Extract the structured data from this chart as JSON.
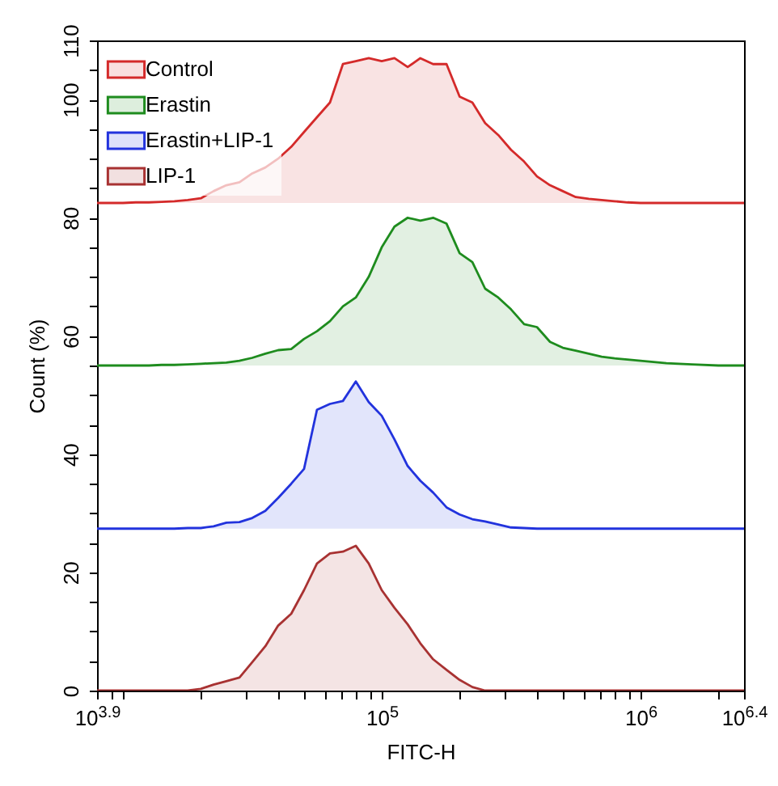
{
  "chart_data": {
    "type": "area",
    "xlabel": "FITC-H",
    "ylabel": "Count (%)",
    "log": "x",
    "legend": "top left",
    "x": [
      7943,
      8910,
      10000,
      11200,
      12600,
      14100,
      15800,
      17800,
      20000,
      22400,
      25100,
      28200,
      31600,
      35500,
      39800,
      44700,
      50100,
      56200,
      63100,
      70800,
      79400,
      89100,
      100000,
      112000,
      126000,
      141000,
      158000,
      178000,
      200000,
      224000,
      251000,
      282000,
      316000,
      355000,
      398000,
      447000,
      501000,
      562000,
      631000,
      708000,
      794000,
      891000,
      1000000,
      1260000,
      1580000,
      2000000,
      2512000
    ],
    "xlim": [
      7943,
      2512000
    ],
    "xticks": [
      {
        "value": 7943,
        "label": "10$^{3.9}$"
      },
      {
        "value": 9000,
        "label": null
      },
      {
        "value": 10000,
        "label": null
      },
      {
        "value": 20000,
        "label": null
      },
      {
        "value": 30000,
        "label": null
      },
      {
        "value": 40000,
        "label": null
      },
      {
        "value": 50000,
        "label": null
      },
      {
        "value": 60000,
        "label": null
      },
      {
        "value": 70000,
        "label": null
      },
      {
        "value": 80000,
        "label": null
      },
      {
        "value": 90000,
        "label": null
      },
      {
        "value": 100000,
        "label": "10$^{5}$"
      },
      {
        "value": 200000,
        "label": null
      },
      {
        "value": 300000,
        "label": null
      },
      {
        "value": 400000,
        "label": null
      },
      {
        "value": 500000,
        "label": null
      },
      {
        "value": 600000,
        "label": null
      },
      {
        "value": 700000,
        "label": null
      },
      {
        "value": 800000,
        "label": null
      },
      {
        "value": 900000,
        "label": null
      },
      {
        "value": 1000000,
        "label": "10$^{6}$"
      },
      {
        "value": 2000000,
        "label": null
      },
      {
        "value": 2512000,
        "label": "10$^{6.4}$"
      }
    ],
    "ylim": [
      0,
      110
    ],
    "yticks": [
      0,
      {
        "value": 5,
        "label": null
      },
      {
        "value": 10,
        "label": null
      },
      {
        "value": 15,
        "label": null
      },
      20,
      {
        "value": 25,
        "label": null
      },
      {
        "value": 30,
        "label": null
      },
      {
        "value": 35,
        "label": null
      },
      40,
      {
        "value": 45,
        "label": null
      },
      {
        "value": 50,
        "label": null
      },
      {
        "value": 55,
        "label": null
      },
      60,
      {
        "value": 65,
        "label": null
      },
      {
        "value": 70,
        "label": null
      },
      {
        "value": 75,
        "label": null
      },
      80,
      {
        "value": 85,
        "label": null
      },
      {
        "value": 90,
        "label": null
      },
      {
        "value": 95,
        "label": null
      },
      100,
      {
        "value": 105,
        "label": null
      },
      110
    ],
    "series": [
      {
        "name": "Control",
        "color": "#d42a2a",
        "values": [
          82.5,
          82.5,
          82.5,
          82.6,
          82.6,
          82.7,
          82.8,
          83.0,
          83.3,
          84.5,
          85.5,
          86,
          87.5,
          88.5,
          90,
          92,
          94.5,
          97,
          99.5,
          106,
          106.5,
          107,
          106.5,
          107,
          105.5,
          107,
          106,
          106,
          100.5,
          99.5,
          96,
          94,
          91.5,
          89.5,
          87,
          85.5,
          84.5,
          83.5,
          83.2,
          83,
          82.8,
          82.6,
          82.5,
          82.5,
          82.5,
          82.5,
          82.5
        ]
      },
      {
        "name": "Erastin",
        "color": "#1e8c1e",
        "values": [
          55,
          55,
          55,
          55,
          55,
          55.1,
          55.1,
          55.2,
          55.3,
          55.4,
          55.5,
          55.8,
          56.3,
          57,
          57.6,
          57.8,
          59.5,
          60.8,
          62.5,
          65,
          66.5,
          70,
          75,
          78.5,
          80,
          79.5,
          80,
          79,
          74,
          72.5,
          68,
          66.5,
          64.5,
          62,
          61.5,
          59,
          58,
          57.5,
          57,
          56.5,
          56.2,
          56,
          55.8,
          55.4,
          55.2,
          55,
          55
        ]
      },
      {
        "name": "Erastin+LIP-1",
        "color": "#2233dd",
        "values": [
          27.4,
          27.4,
          27.4,
          27.4,
          27.4,
          27.4,
          27.4,
          27.5,
          27.5,
          27.8,
          28.4,
          28.5,
          29.2,
          30.4,
          32.6,
          35,
          37.5,
          47.5,
          48.5,
          49,
          52.3,
          48.8,
          46.5,
          42.5,
          38,
          35.5,
          33.5,
          31,
          29.8,
          29,
          28.6,
          28.1,
          27.6,
          27.5,
          27.4,
          27.4,
          27.4,
          27.4,
          27.4,
          27.4,
          27.4,
          27.4,
          27.4,
          27.4,
          27.4,
          27.4,
          27.4
        ]
      },
      {
        "name": "LIP-1",
        "color": "#a83232",
        "values": [
          0,
          0,
          0,
          0,
          0,
          0,
          0,
          0,
          0.3,
          1,
          1.6,
          2.2,
          4.8,
          7.5,
          11,
          13,
          17,
          21.5,
          23.2,
          23.5,
          24.5,
          21.5,
          17,
          14,
          11.2,
          8,
          5.3,
          3.5,
          1.8,
          0.6,
          0,
          0,
          0,
          0,
          0,
          0,
          0,
          0,
          0,
          0,
          0,
          0,
          0,
          0,
          0,
          0,
          0
        ]
      }
    ]
  }
}
